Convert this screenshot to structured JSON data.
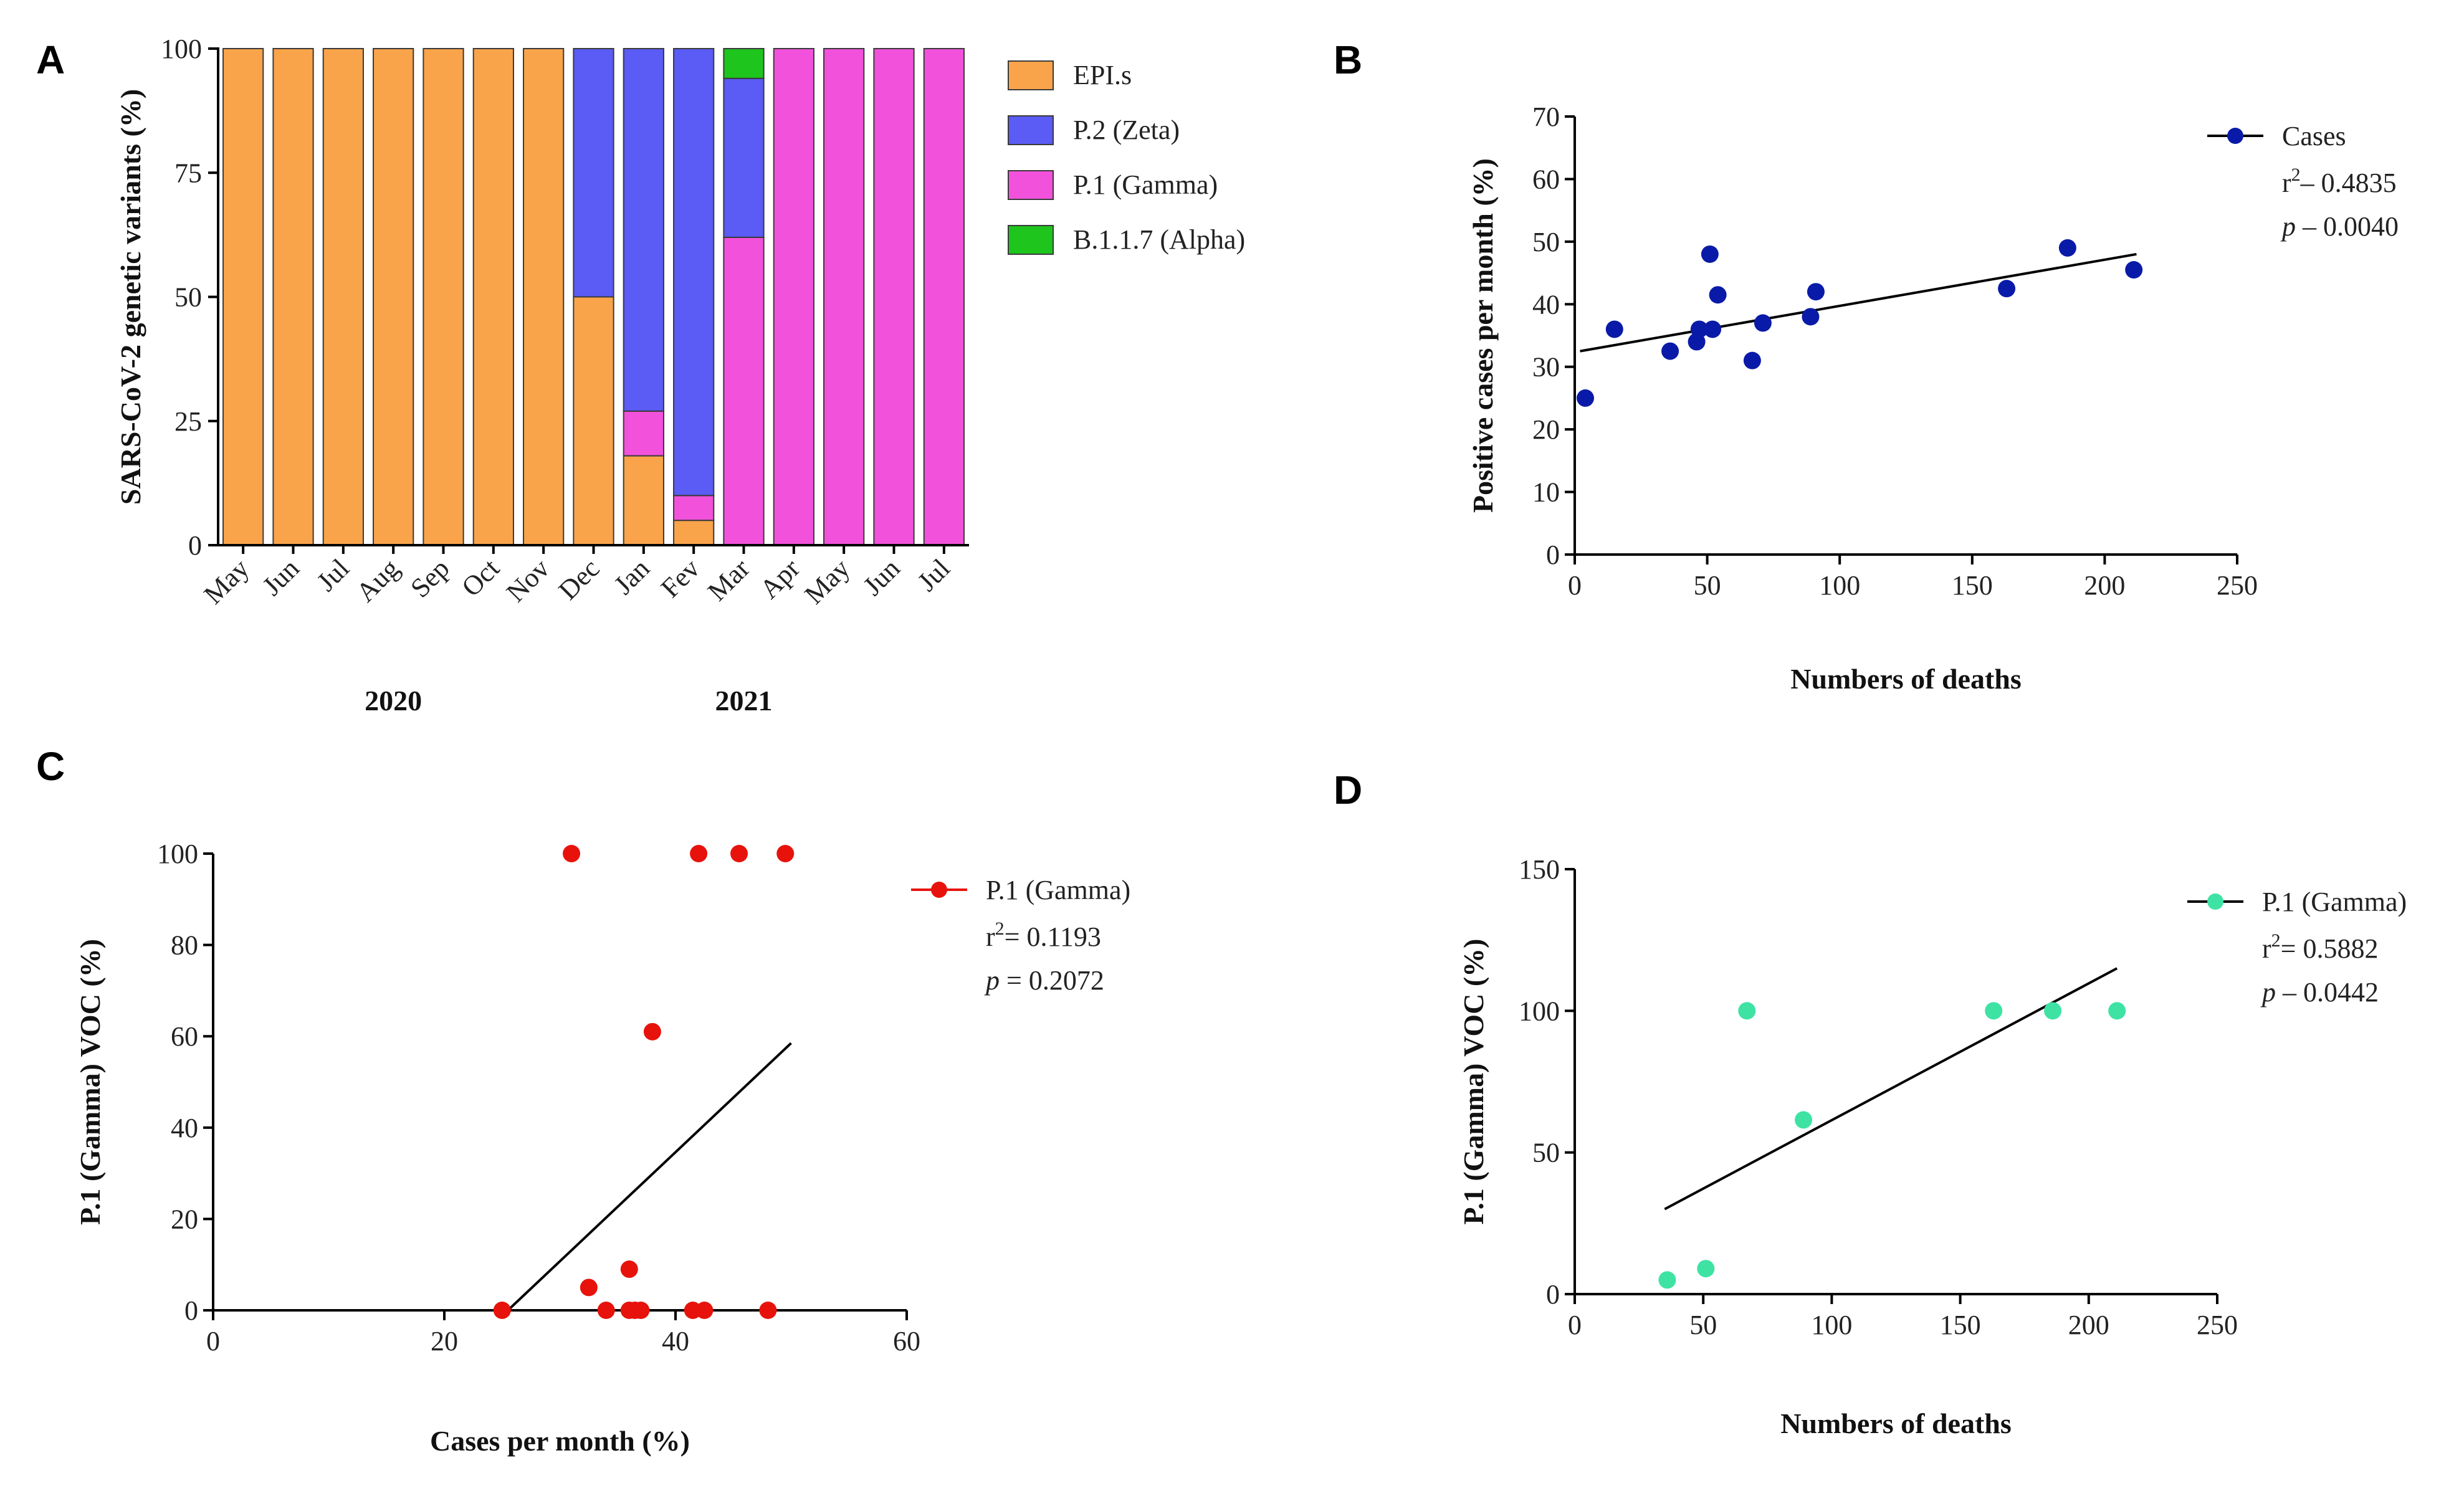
{
  "panels": {
    "A": "A",
    "B": "B",
    "C": "C",
    "D": "D"
  },
  "chart_data": [
    {
      "id": "A",
      "type": "bar",
      "stacked": true,
      "title": "",
      "xlabel": "",
      "ylabel": "SARS-CoV-2 genetic variants (%)",
      "ylim": [
        0,
        100
      ],
      "yticks": [
        "0",
        "25",
        "50",
        "75",
        "100"
      ],
      "categories": [
        "May",
        "Jun",
        "Jul",
        "Aug",
        "Sep",
        "Oct",
        "Nov",
        "Dec",
        "Jan",
        "Fev",
        "Mar",
        "Apr",
        "May",
        "Jun",
        "Jul"
      ],
      "year_labels": [
        {
          "label": "2020",
          "under_category_index": 3
        },
        {
          "label": "2021",
          "under_category_index": 10
        }
      ],
      "series": [
        {
          "name": "EPI.s",
          "color": "#F9A44A",
          "values": [
            100,
            100,
            100,
            100,
            100,
            100,
            100,
            50,
            18,
            5,
            0,
            0,
            0,
            0,
            0
          ]
        },
        {
          "name": "P.1 (Gamma)",
          "color": "#F252DB",
          "values": [
            0,
            0,
            0,
            0,
            0,
            0,
            0,
            0,
            9,
            5,
            62,
            100,
            100,
            100,
            100
          ]
        },
        {
          "name": "P.2 (Zeta)",
          "color": "#5B5BF6",
          "values": [
            0,
            0,
            0,
            0,
            0,
            0,
            0,
            50,
            73,
            90,
            32,
            0,
            0,
            0,
            0
          ]
        },
        {
          "name": "B.1.1.7 (Alpha)",
          "color": "#1DC51D",
          "values": [
            0,
            0,
            0,
            0,
            0,
            0,
            0,
            0,
            0,
            0,
            6,
            0,
            0,
            0,
            0
          ]
        }
      ],
      "legend": [
        "EPI.s",
        "P.2 (Zeta)",
        "P.1 (Gamma)",
        "B.1.1.7 (Alpha)"
      ],
      "legend_position": "right"
    },
    {
      "id": "B",
      "type": "scatter",
      "title": "",
      "xlabel": "Numbers of deaths",
      "ylabel": "Positive cases per month (%)",
      "xlim": [
        0,
        250
      ],
      "ylim": [
        0,
        70
      ],
      "xticks": [
        "0",
        "50",
        "100",
        "150",
        "200",
        "250"
      ],
      "yticks": [
        "0",
        "10",
        "20",
        "30",
        "40",
        "50",
        "60",
        "70"
      ],
      "marker_color": "#0A1AA8",
      "series_name": "Cases",
      "points": [
        [
          4,
          25
        ],
        [
          15,
          36
        ],
        [
          36,
          32.5
        ],
        [
          46,
          34
        ],
        [
          47,
          36
        ],
        [
          51,
          48
        ],
        [
          52,
          36
        ],
        [
          54,
          41.5
        ],
        [
          67,
          31
        ],
        [
          71,
          37
        ],
        [
          89,
          38
        ],
        [
          91,
          42
        ],
        [
          163,
          42.5
        ],
        [
          186,
          49
        ],
        [
          211,
          45.5
        ]
      ],
      "fit_line": [
        [
          2,
          32.5
        ],
        [
          212,
          48
        ]
      ],
      "stats": {
        "r2_prefix": "r",
        "r2_exp": "2",
        "r2_value": "– 0.4835",
        "p_label": "p",
        "p_value": "– 0.0040"
      },
      "legend_position": "top-right"
    },
    {
      "id": "C",
      "type": "scatter",
      "title": "",
      "xlabel": "Cases per month (%)",
      "ylabel": "P.1 (Gamma) VOC (%)",
      "xlim": [
        0,
        60
      ],
      "ylim": [
        0,
        100
      ],
      "xticks": [
        "0",
        "20",
        "40",
        "60"
      ],
      "yticks": [
        "0",
        "20",
        "40",
        "60",
        "80",
        "100"
      ],
      "marker_color": "#E8120C",
      "series_name": "P.1 (Gamma)",
      "points": [
        [
          25,
          0
        ],
        [
          31,
          100
        ],
        [
          32.5,
          5
        ],
        [
          34,
          0
        ],
        [
          36,
          9
        ],
        [
          36,
          0
        ],
        [
          36.5,
          0
        ],
        [
          37,
          0
        ],
        [
          38,
          61
        ],
        [
          41.5,
          0
        ],
        [
          42,
          100
        ],
        [
          42.5,
          0
        ],
        [
          45.5,
          100
        ],
        [
          48,
          0
        ],
        [
          49.5,
          100
        ]
      ],
      "fit_line": [
        [
          25.5,
          0
        ],
        [
          50,
          58.5
        ]
      ],
      "baseline_line": [
        [
          0,
          0
        ],
        [
          25,
          0
        ]
      ],
      "stats": {
        "r2_prefix": "r",
        "r2_exp": "2",
        "r2_value": "= 0.1193",
        "p_label": "p",
        "p_value": "= 0.2072"
      },
      "legend_position": "top-right"
    },
    {
      "id": "D",
      "type": "scatter",
      "title": "",
      "xlabel": "Numbers of deaths",
      "ylabel": "P.1 (Gamma) VOC (%)",
      "xlim": [
        0,
        250
      ],
      "ylim": [
        0,
        150
      ],
      "xticks": [
        "0",
        "50",
        "100",
        "150",
        "200",
        "250"
      ],
      "yticks": [
        "0",
        "50",
        "100",
        "150"
      ],
      "marker_color": "#3EE3A4",
      "series_name": "P.1 (Gamma)",
      "points": [
        [
          36,
          5
        ],
        [
          51,
          9
        ],
        [
          67,
          100
        ],
        [
          89,
          61.5
        ],
        [
          163,
          100
        ],
        [
          186,
          100
        ],
        [
          211,
          100
        ]
      ],
      "fit_line": [
        [
          35,
          30
        ],
        [
          211,
          115
        ]
      ],
      "stats": {
        "r2_prefix": "r",
        "r2_exp": "2",
        "r2_value": "= 0.5882",
        "p_label": "p",
        "p_value": "– 0.0442"
      },
      "legend_position": "top-right"
    }
  ]
}
